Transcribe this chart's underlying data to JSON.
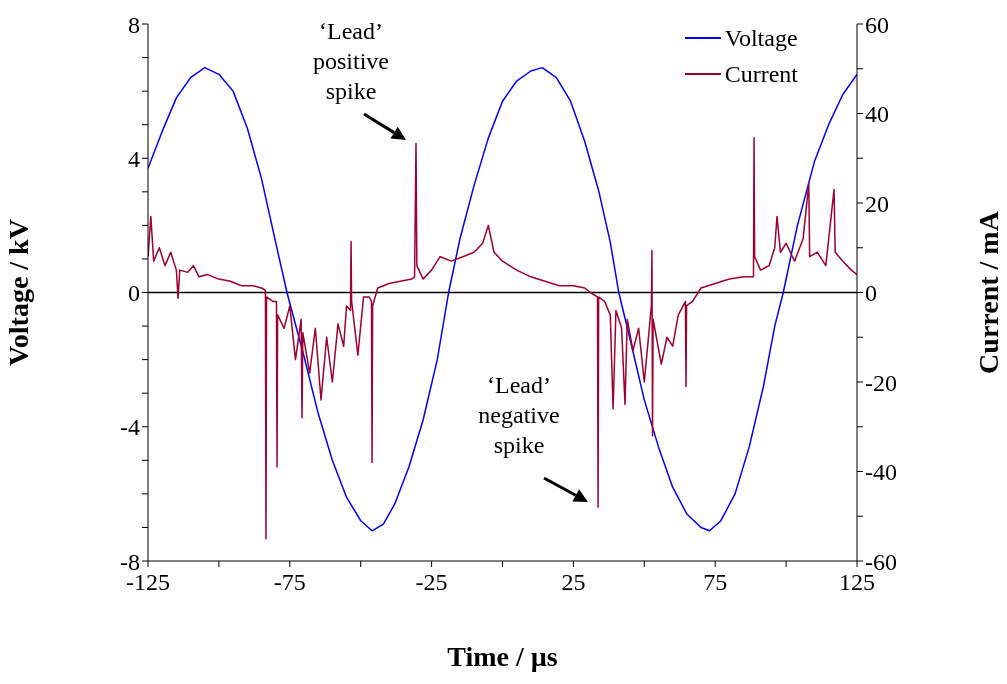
{
  "chart_data": {
    "type": "line",
    "xlabel": "Time / µs",
    "ylabel": "Voltage / kV",
    "y2label": "Current / mA",
    "xlim": [
      -125,
      125
    ],
    "xticks": [
      -125,
      {
        "value": -100,
        "label": null
      },
      -75,
      {
        "value": -50,
        "label": null
      },
      -25,
      {
        "value": 0,
        "label": null
      },
      25,
      {
        "value": 50,
        "label": null
      },
      75,
      {
        "value": 100,
        "label": null
      },
      125
    ],
    "ylim": [
      -8,
      8
    ],
    "yticks": [
      -8,
      {
        "value": -7,
        "label": null
      },
      {
        "value": -6,
        "label": null
      },
      {
        "value": -5,
        "label": null
      },
      -4,
      {
        "value": -3,
        "label": null
      },
      {
        "value": -2,
        "label": null
      },
      {
        "value": -1,
        "label": null
      },
      0,
      {
        "value": 1,
        "label": null
      },
      {
        "value": 2,
        "label": null
      },
      {
        "value": 3,
        "label": null
      },
      4,
      {
        "value": 5,
        "label": null
      },
      {
        "value": 6,
        "label": null
      },
      {
        "value": 7,
        "label": null
      },
      8
    ],
    "y2lim": [
      -60,
      60
    ],
    "y2ticks": [
      -60,
      {
        "value": -50,
        "label": null
      },
      -40,
      {
        "value": -30,
        "label": null
      },
      -20,
      {
        "value": -10,
        "label": null
      },
      0,
      {
        "value": 10,
        "label": null
      },
      20,
      {
        "value": 30,
        "label": null
      },
      40,
      {
        "value": 50,
        "label": null
      },
      60
    ],
    "legend": "top right",
    "marker": "none",
    "line_style": "solid",
    "ref_lines": [
      {
        "axis": "y",
        "value": 0,
        "color": "#000000"
      }
    ],
    "annotations": [
      "‘Lead’ positive spike",
      "‘Lead’ negative spike"
    ],
    "series": [
      {
        "name": "Voltage",
        "color": "#0000ff",
        "x": [
          -125,
          -120,
          -115,
          -110,
          -105,
          -100,
          -95,
          -90,
          -85,
          -80,
          -76,
          -70,
          -65,
          -60,
          -55,
          -50,
          -46,
          -42,
          -38,
          -33,
          -28,
          -23,
          -19,
          -15,
          -10,
          -5,
          0,
          5,
          10,
          14,
          19,
          24,
          29,
          34,
          38,
          41,
          45,
          50,
          55,
          60,
          65,
          70,
          73,
          77,
          82,
          87,
          92,
          96,
          99,
          104,
          110,
          115,
          120,
          125
        ],
        "values": [
          3.7,
          4.8,
          5.8,
          6.4,
          6.7,
          6.5,
          6.0,
          4.9,
          3.4,
          1.5,
          0,
          -1.9,
          -3.6,
          -5.0,
          -6.1,
          -6.8,
          -7.1,
          -6.9,
          -6.3,
          -5.2,
          -3.8,
          -2.0,
          0,
          1.6,
          3.2,
          4.6,
          5.7,
          6.3,
          6.6,
          6.7,
          6.4,
          5.7,
          4.5,
          3.0,
          1.5,
          0,
          -1.4,
          -3.2,
          -4.6,
          -5.8,
          -6.6,
          -7.0,
          -7.1,
          -6.8,
          -6.0,
          -4.6,
          -2.8,
          -1.0,
          0,
          2.0,
          3.9,
          5.0,
          5.9,
          6.5
        ]
      },
      {
        "name": "Current",
        "color": "#a0002e",
        "axis": "y2",
        "x": [
          -125,
          -124,
          -123,
          -121,
          -119,
          -117,
          -115,
          -114.4,
          -113.8,
          -111,
          -109,
          -107,
          -104,
          -100,
          -96,
          -92,
          -88,
          -85,
          -83.6,
          -83.4,
          -83.2,
          -81,
          -79.7,
          -79.5,
          -79.3,
          -77,
          -75,
          -73,
          -71,
          -70.7,
          -70.4,
          -68,
          -66,
          -64,
          -62,
          -60,
          -58,
          -56,
          -55,
          -53.6,
          -53.4,
          -53.2,
          -51,
          -49,
          -47,
          -46.2,
          -46,
          -45.8,
          -44,
          -40,
          -36,
          -32,
          -31,
          -30.5,
          -30.2,
          -28,
          -25,
          -22,
          -18,
          -14,
          -10,
          -7,
          -5,
          -3,
          0,
          5,
          10,
          15,
          20,
          25,
          29,
          31,
          33.5,
          33.7,
          33.9,
          36,
          38,
          39,
          40,
          42,
          43.2,
          44,
          46,
          48,
          50,
          52.5,
          52.7,
          52.9,
          53.1,
          56,
          58,
          60,
          62,
          64.5,
          64.7,
          64.9,
          67,
          70,
          75,
          80,
          85,
          88.5,
          88.7,
          88.9,
          91,
          94,
          96,
          96.8,
          98,
          100,
          103,
          106,
          108,
          108.3,
          111,
          114,
          116.9,
          117.3,
          120,
          123,
          125
        ],
        "values": [
          8,
          17,
          7,
          10,
          6,
          9,
          5,
          -1.3,
          5,
          4.5,
          6,
          3.5,
          4,
          3,
          2.5,
          1.5,
          1.5,
          1,
          0.5,
          -55,
          -1,
          -2,
          -2,
          -39,
          -5,
          -8,
          -3,
          -15,
          -6,
          -28,
          -9,
          -18,
          -8,
          -24,
          -10,
          -20,
          -7,
          -12,
          -3,
          -4,
          11.4,
          -2,
          -14,
          -1,
          -1,
          -2,
          -38,
          -3,
          1,
          2,
          2.5,
          3,
          3.5,
          33.3,
          6,
          3,
          5,
          8,
          7,
          8,
          9,
          11,
          15,
          9,
          7,
          5,
          3.5,
          2.5,
          1.5,
          1.5,
          1,
          0,
          -1,
          -48,
          -1,
          -2,
          -5,
          -26,
          -4,
          -8,
          -25,
          -6,
          -13,
          -8,
          -20,
          -3,
          9.4,
          -32,
          -6,
          -16,
          -10,
          -12,
          -5,
          -2,
          -21,
          -3,
          -2,
          1,
          2,
          3,
          3.5,
          3.5,
          34.6,
          8,
          5,
          6,
          10,
          17,
          9,
          11,
          7,
          12,
          24.4,
          8,
          9,
          6,
          23,
          9,
          7,
          5,
          4
        ]
      }
    ]
  }
}
